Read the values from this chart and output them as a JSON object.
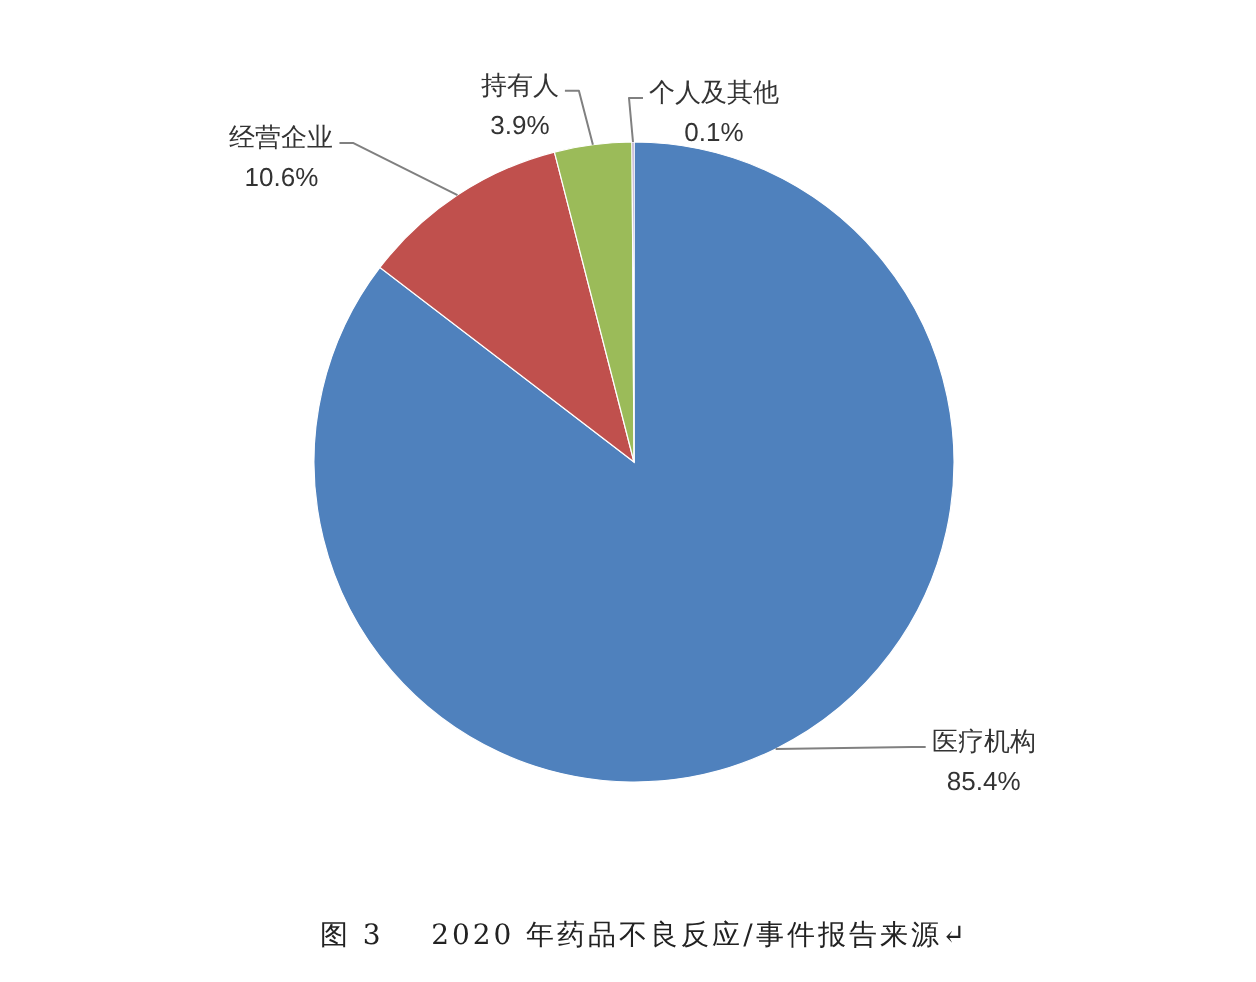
{
  "chart_data": {
    "type": "pie",
    "title": "图 3    2020 年药品不良反应/事件报告来源↵",
    "categories": [
      "医疗机构",
      "经营企业",
      "持有人",
      "个人及其他"
    ],
    "values": [
      85.4,
      10.6,
      3.9,
      0.1
    ],
    "value_labels": [
      "85.4%",
      "10.6%",
      "3.9%",
      "0.1%"
    ],
    "colors": [
      "#4f81bd",
      "#c0504d",
      "#9bbb59",
      "#8064a2"
    ]
  }
}
